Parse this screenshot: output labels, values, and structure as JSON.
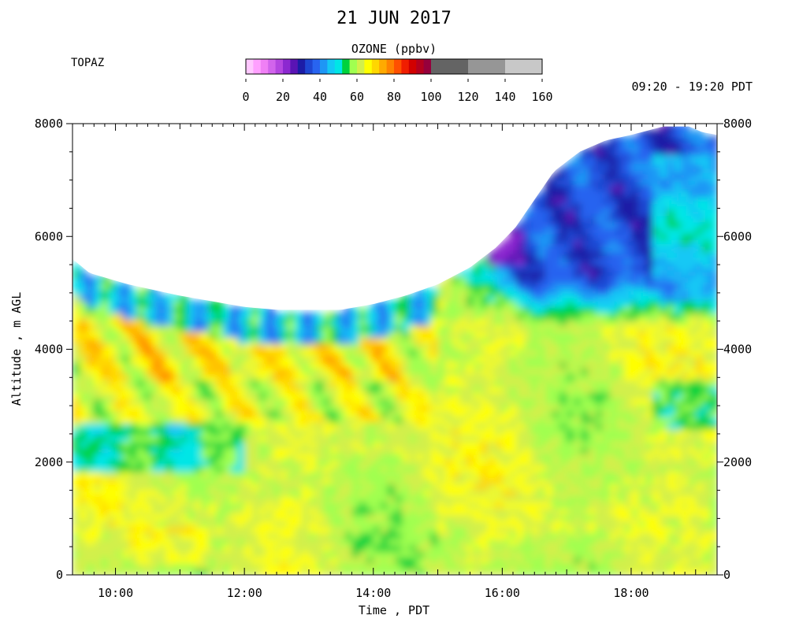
{
  "chart_data": {
    "type": "heatmap",
    "title": "21 JUN 2017",
    "site": "TOPAZ",
    "time_range": "09:20 - 19:20 PDT",
    "xlabel": "Time , PDT",
    "ylabel": "Altitude , m AGL",
    "x_range_hours": [
      9.333,
      19.333
    ],
    "y_range_m": [
      0,
      8000
    ],
    "x_ticks": [
      {
        "hour": 10,
        "label": "10:00"
      },
      {
        "hour": 12,
        "label": "12:00"
      },
      {
        "hour": 14,
        "label": "14:00"
      },
      {
        "hour": 16,
        "label": "16:00"
      },
      {
        "hour": 18,
        "label": "18:00"
      }
    ],
    "y_ticks": [
      0,
      2000,
      4000,
      6000,
      8000
    ],
    "y_tick_labels": [
      "0",
      "2000",
      "4000",
      "6000",
      "8000"
    ],
    "colorbar": {
      "title": "OZONE (ppbv)",
      "tick_values": [
        0,
        20,
        40,
        60,
        80,
        100,
        120,
        140,
        160
      ],
      "tick_labels": [
        "0",
        "20",
        "40",
        "60",
        "80",
        "100",
        "120",
        "140",
        "160"
      ],
      "bins": [
        {
          "from": 0,
          "to": 4,
          "color": "#ffc8ff"
        },
        {
          "from": 4,
          "to": 8,
          "color": "#ffa0ff"
        },
        {
          "from": 8,
          "to": 12,
          "color": "#f080f5"
        },
        {
          "from": 12,
          "to": 16,
          "color": "#d264ec"
        },
        {
          "from": 16,
          "to": 20,
          "color": "#b446e0"
        },
        {
          "from": 20,
          "to": 24,
          "color": "#8c28d0"
        },
        {
          "from": 24,
          "to": 28,
          "color": "#5a14b4"
        },
        {
          "from": 28,
          "to": 32,
          "color": "#1c1ca6"
        },
        {
          "from": 32,
          "to": 36,
          "color": "#1e46d2"
        },
        {
          "from": 36,
          "to": 40,
          "color": "#2864f0"
        },
        {
          "from": 40,
          "to": 44,
          "color": "#1e96f5"
        },
        {
          "from": 44,
          "to": 48,
          "color": "#14c8f5"
        },
        {
          "from": 48,
          "to": 52,
          "color": "#00e6e6"
        },
        {
          "from": 52,
          "to": 56,
          "color": "#00d23c"
        },
        {
          "from": 56,
          "to": 60,
          "color": "#a0ff50"
        },
        {
          "from": 60,
          "to": 64,
          "color": "#d2f04b"
        },
        {
          "from": 64,
          "to": 68,
          "color": "#ffff00"
        },
        {
          "from": 68,
          "to": 72,
          "color": "#ffd700"
        },
        {
          "from": 72,
          "to": 76,
          "color": "#ffaa00"
        },
        {
          "from": 76,
          "to": 80,
          "color": "#ff8200"
        },
        {
          "from": 80,
          "to": 84,
          "color": "#ff5000"
        },
        {
          "from": 84,
          "to": 88,
          "color": "#f01e00"
        },
        {
          "from": 88,
          "to": 92,
          "color": "#d20000"
        },
        {
          "from": 92,
          "to": 96,
          "color": "#b4001e"
        },
        {
          "from": 96,
          "to": 100,
          "color": "#96003c"
        },
        {
          "from": 100,
          "to": 120,
          "color": "#646464"
        },
        {
          "from": 120,
          "to": 140,
          "color": "#969696"
        },
        {
          "from": 140,
          "to": 160,
          "color": "#c8c8c8"
        }
      ]
    },
    "data_top_altitude_m": [
      [
        9.333,
        5600
      ],
      [
        9.6,
        5350
      ],
      [
        9.9,
        5250
      ],
      [
        10.2,
        5150
      ],
      [
        10.6,
        5050
      ],
      [
        11.0,
        4950
      ],
      [
        11.5,
        4850
      ],
      [
        12.0,
        4750
      ],
      [
        12.5,
        4700
      ],
      [
        13.0,
        4700
      ],
      [
        13.5,
        4700
      ],
      [
        14.0,
        4800
      ],
      [
        14.5,
        4950
      ],
      [
        15.0,
        5150
      ],
      [
        15.5,
        5450
      ],
      [
        15.9,
        5800
      ],
      [
        16.2,
        6150
      ],
      [
        16.5,
        6650
      ],
      [
        16.8,
        7150
      ],
      [
        17.2,
        7500
      ],
      [
        17.6,
        7700
      ],
      [
        18.0,
        7800
      ],
      [
        18.5,
        7950
      ],
      [
        18.9,
        7950
      ],
      [
        19.1,
        7850
      ],
      [
        19.333,
        7800
      ]
    ],
    "profile_regions_ppbv": [
      {
        "z_from_m": 0,
        "z_to_m": 1800,
        "period": "09:20-19:20",
        "typical_ppbv": 60
      },
      {
        "z_from_m": 1800,
        "z_to_m": 2700,
        "period": "09:20-12:00",
        "typical_ppbv": 54
      },
      {
        "z_from_m": 2700,
        "z_to_m": 4700,
        "period": "09:20-15:00",
        "typical_ppbv": 64
      },
      {
        "z_from_m": 3500,
        "z_to_m": 4500,
        "period": "09:20-14:30",
        "peak_ppbv": 82
      },
      {
        "z_from_m": 4300,
        "z_to_m": 5000,
        "period": "12:00-14:30",
        "typical_ppbv": 48
      },
      {
        "z_from_m": 5000,
        "z_to_m": 8000,
        "period": "16:00-19:20",
        "typical_ppbv": 34
      },
      {
        "z_from_m": 5500,
        "z_to_m": 6200,
        "period": "15:50-16:20",
        "min_ppbv": 24
      },
      {
        "z_from_m": 2600,
        "z_to_m": 3500,
        "period": "18:30-19:20",
        "typical_ppbv": 54
      }
    ]
  }
}
